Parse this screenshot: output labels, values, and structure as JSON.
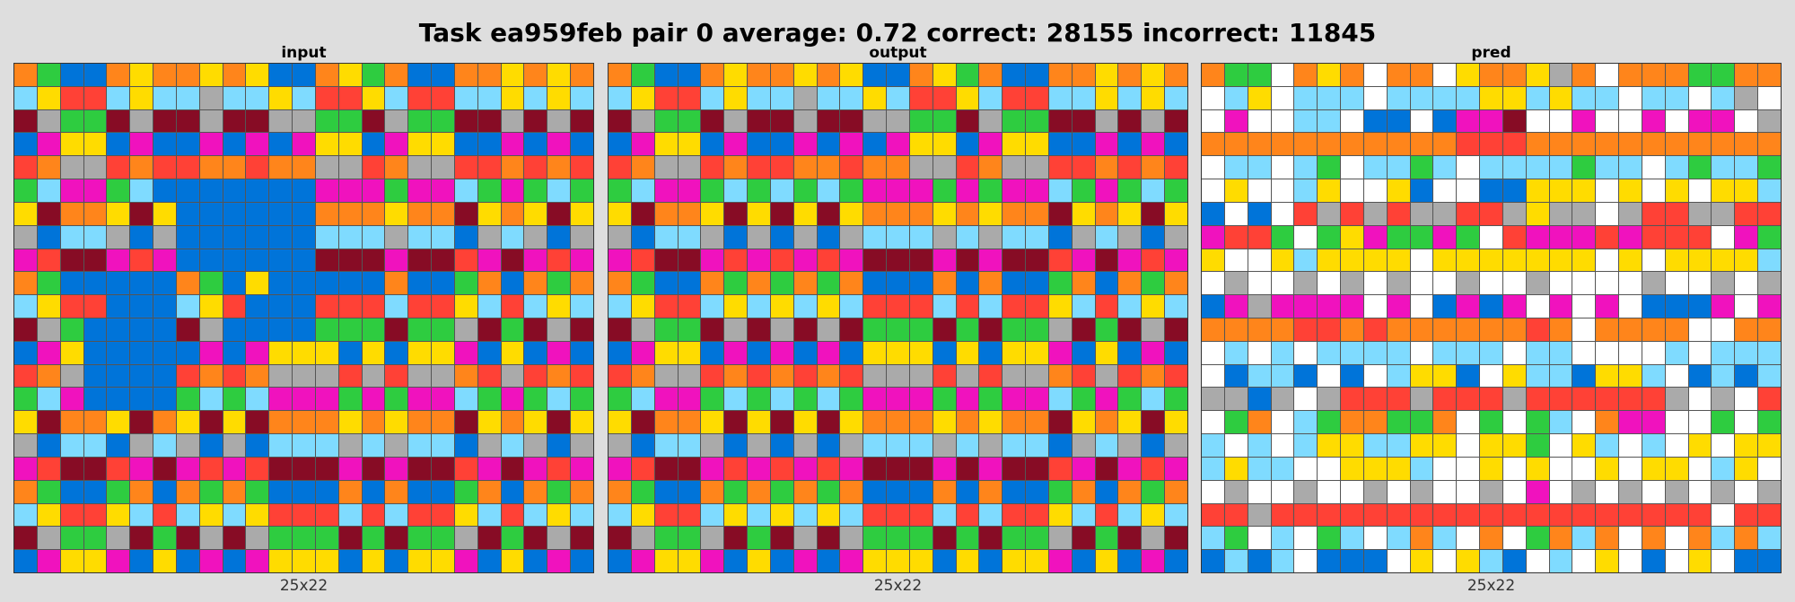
{
  "title": "Task ea959feb pair 0 average: 0.72 correct: 28155 incorrect: 11845",
  "palette": {
    "0": "#000000",
    "1": "#0074d9",
    "2": "#ff4136",
    "3": "#2ecc40",
    "4": "#ffdc00",
    "5": "#aaaaaa",
    "6": "#f012be",
    "7": "#ff851b",
    "8": "#7fdbff",
    "9": "#870c25",
    "w": "#ffffff"
  },
  "panels": [
    {
      "label": "input",
      "size": "25x22",
      "rows": [
        "7311747747411743711774747",
        "8422848858848224822884848",
        "9533959959955339533995959",
        "1644161161616441644116161",
        "2755272277277552755227272",
        "3866381111111666366836383",
        "4977494111111777477947494",
        "5188515111111888588158515",
        "6299626111111999699269626",
        "7311111731411111711371737",
        "8422111842111222822482848",
        "9531111951111333933593959",
        "1641111161644414144614161",
        "2751111272755525255725272",
        "3861111383866636366836383",
        "4977497494977747477947494",
        "5188158515188858588158515",
        "6299269626299969699269626",
        "7311371737311171711371737",
        "8422482848422282822482848",
        "9533593959533393933593959",
        "1644614161644414144614161"
      ]
    },
    {
      "label": "output",
      "size": "25x22",
      "rows": [
        "7311747747411743711774747",
        "8422848858848224822884848",
        "9533959959955339533995959",
        "1644161161616441644116161",
        "2755272277277552755227272",
        "3866383838366636366836383",
        "4977494949477747477947494",
        "5188515151588858588158515",
        "6299626262699969699269626",
        "7311737373711171711371737",
        "8422848484822282822482848",
        "9533959595933393933593959",
        "1644161616144414144614161",
        "2755272727255525255725272",
        "3866383838366636366836383",
        "4977494949477747477947494",
        "5188515151588858588158515",
        "6299626262699969699269626",
        "7311737373711171711371737",
        "8422848484822282822482848",
        "9533593959533393933593959",
        "1644614161644414144614161"
      ]
    },
    {
      "label": "pred",
      "size": "25x22",
      "rows": [
        "733w747w77w477457w7773377",
        "w84w888w8888448488w88w85w",
        "w6ww88w11w1669ww6ww6w66w5",
        "7777777777722277777777777",
        "w88w83w8838w8888388w83883",
        "w4ww84ww41ww11444w4w4w448",
        "1w1w2525255225455w5225522",
        "6223w3463363w266626222w63",
        "4ww484444w4444444w4w44448",
        "w5ww5w5w5ww5ww5wwww5ww5w5",
        "1656666w6w1616w6w6w1116w6",
        "7777227277777727w7777ww77",
        "w8w8w8888w888w88wwww8w888",
        "w1881w1w8441w4881448w1818",
        "5515w5222522252222225w5w2",
        "w37w8377337w3w38w766ww3w3",
        "8w8w8448844w443w48w8w4w44",
        "8488ww4448ww4w4ww4w44w84w",
        "w5ww5ww5w5ww5w6w5w5w5w5w5",
        "2252222222222222222222w22",
        "83w8w38w878w7w3787w7w7878",
        "1818w111w4w481w8w4w1w4w11"
      ]
    }
  ]
}
